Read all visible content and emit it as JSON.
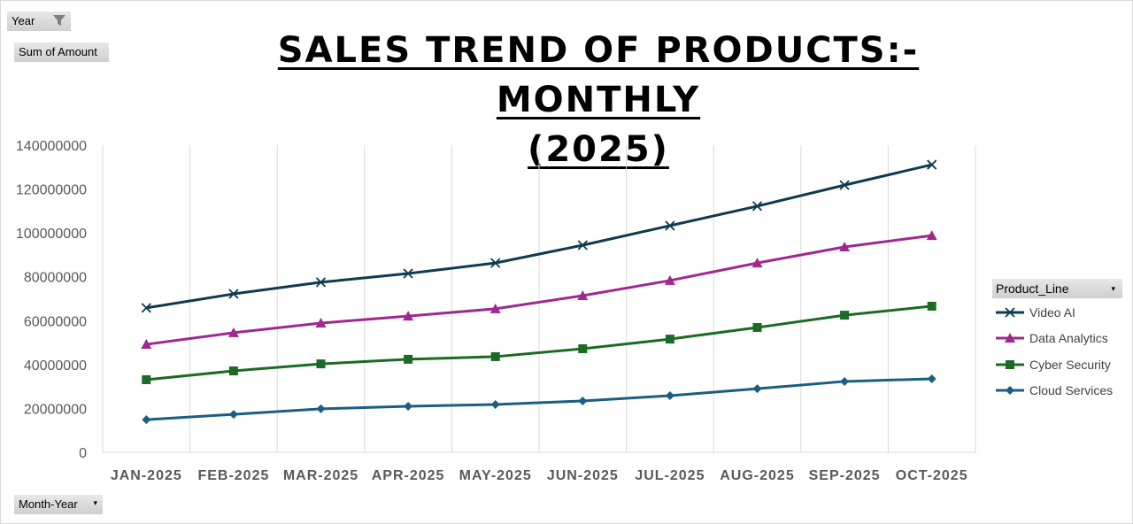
{
  "filters": {
    "year_label": "Year",
    "values_label": "Sum of Amount",
    "axis_field_label": "Month-Year",
    "legend_field_label": "Product_Line"
  },
  "chart_data": {
    "type": "line",
    "title": "SALES TREND OF PRODUCTS:- MONTHLY (2025)",
    "title_lines": [
      "SALES TREND OF PRODUCTS:- MONTHLY",
      "(2025)"
    ],
    "xlabel": "",
    "ylabel": "",
    "categories": [
      "JAN-2025",
      "FEB-2025",
      "MAR-2025",
      "APR-2025",
      "MAY-2025",
      "JUN-2025",
      "JUL-2025",
      "AUG-2025",
      "SEP-2025",
      "OCT-2025"
    ],
    "ylim": [
      0,
      140000000
    ],
    "yticks": [
      "0",
      "20000000",
      "40000000",
      "60000000",
      "80000000",
      "100000000",
      "120000000",
      "140000000"
    ],
    "grid": "vertical",
    "legend": "right",
    "series": [
      {
        "name": "Video AI",
        "color": "#0f3a4f",
        "marker": "x",
        "values": [
          65800000,
          72200000,
          77500000,
          81500000,
          86300000,
          94400000,
          103300000,
          112200000,
          121800000,
          131100000
        ]
      },
      {
        "name": "Data Analytics",
        "color": "#a0288f",
        "marker": "triangle",
        "values": [
          49200000,
          54500000,
          58900000,
          62100000,
          65400000,
          71400000,
          78300000,
          86300000,
          93600000,
          98800000
        ]
      },
      {
        "name": "Cyber Security",
        "color": "#1b6b24",
        "marker": "square",
        "values": [
          33100000,
          37100000,
          40300000,
          42400000,
          43600000,
          47200000,
          51600000,
          56900000,
          62500000,
          66600000
        ]
      },
      {
        "name": "Cloud Services",
        "color": "#1a5f82",
        "marker": "diamond",
        "values": [
          14900000,
          17300000,
          19800000,
          21000000,
          21800000,
          23400000,
          25800000,
          29000000,
          32300000,
          33500000
        ]
      }
    ]
  }
}
